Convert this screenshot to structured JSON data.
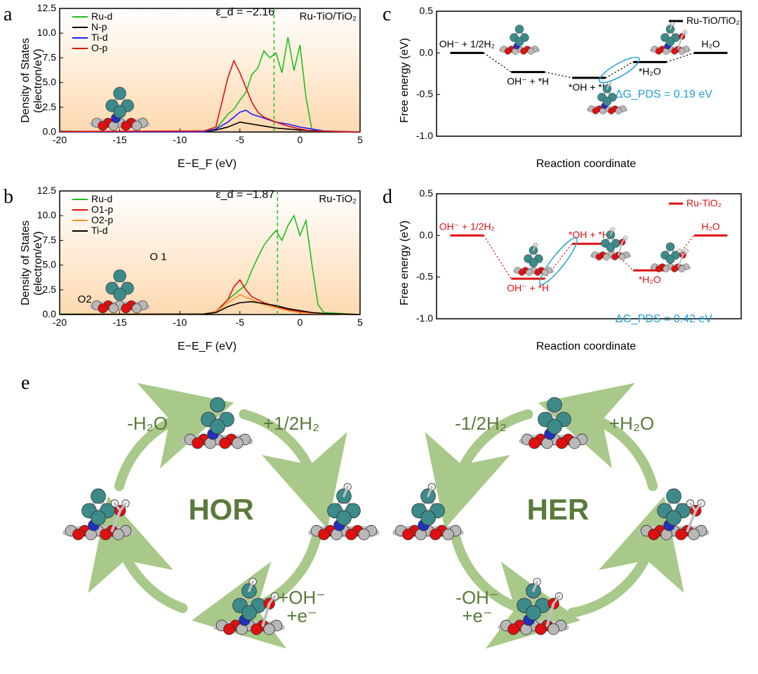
{
  "panel_a": {
    "label": "a",
    "x_title": "E−E_F (eV)",
    "y_title": "Density of States (electron/eV)",
    "xlim": [
      -20,
      5
    ],
    "ylim": [
      0,
      12.5
    ],
    "xticks": [
      -20,
      -15,
      -10,
      -5,
      0,
      5
    ],
    "yticks": [
      0.0,
      2.5,
      5.0,
      7.5,
      10.0,
      12.5
    ],
    "epsilon_d": "ε_d = −2.16",
    "system": "Ru-TiO/TiO₂",
    "legend": [
      {
        "label": "Ru-d",
        "color": "#1fbf1f"
      },
      {
        "label": "N-p",
        "color": "#000000"
      },
      {
        "label": "Ti-d",
        "color": "#1f1fff"
      },
      {
        "label": "O-p",
        "color": "#e01010"
      }
    ],
    "vline_x": -2.16,
    "vline_color": "#1fbf1f",
    "bg_gradient": [
      "#fdd9b0",
      "#ffffff"
    ],
    "series": {
      "Ru-d": {
        "color": "#1fbf1f",
        "points": [
          [
            -20,
            0.1
          ],
          [
            -18,
            0.05
          ],
          [
            -8,
            0.05
          ],
          [
            -7,
            0.3
          ],
          [
            -6,
            1.8
          ],
          [
            -5.5,
            2.3
          ],
          [
            -5,
            3.2
          ],
          [
            -4.5,
            4.0
          ],
          [
            -4,
            5.8
          ],
          [
            -3.5,
            6.5
          ],
          [
            -3,
            8.2
          ],
          [
            -2.5,
            7.5
          ],
          [
            -2,
            8.0
          ],
          [
            -1.5,
            6.0
          ],
          [
            -1,
            9.6
          ],
          [
            -0.5,
            6.2
          ],
          [
            0,
            8.8
          ],
          [
            0.5,
            3.5
          ],
          [
            1,
            0.2
          ],
          [
            2,
            0.05
          ],
          [
            5,
            0.0
          ]
        ]
      },
      "N-p": {
        "color": "#000000",
        "points": [
          [
            -20,
            0.02
          ],
          [
            -8,
            0.02
          ],
          [
            -7,
            0.2
          ],
          [
            -6,
            0.5
          ],
          [
            -5,
            1.0
          ],
          [
            -4,
            0.8
          ],
          [
            -3,
            0.6
          ],
          [
            -2,
            0.4
          ],
          [
            -1,
            0.3
          ],
          [
            0,
            0.2
          ],
          [
            2,
            0.05
          ],
          [
            5,
            0.0
          ]
        ]
      },
      "Ti-d": {
        "color": "#1f1fff",
        "points": [
          [
            -20,
            0.02
          ],
          [
            -8,
            0.02
          ],
          [
            -7,
            0.3
          ],
          [
            -6,
            1.0
          ],
          [
            -5,
            2.0
          ],
          [
            -4.5,
            2.2
          ],
          [
            -4,
            1.8
          ],
          [
            -3,
            1.4
          ],
          [
            -2,
            1.0
          ],
          [
            -1,
            0.8
          ],
          [
            0,
            0.5
          ],
          [
            1,
            0.3
          ],
          [
            2,
            0.1
          ],
          [
            5,
            0.0
          ]
        ]
      },
      "O-p": {
        "color": "#e01010",
        "points": [
          [
            -20,
            0.05
          ],
          [
            -8,
            0.1
          ],
          [
            -7,
            0.5
          ],
          [
            -6.5,
            3.0
          ],
          [
            -6,
            5.5
          ],
          [
            -5.5,
            7.2
          ],
          [
            -5,
            6.0
          ],
          [
            -4.5,
            4.5
          ],
          [
            -4,
            3.0
          ],
          [
            -3.5,
            2.0
          ],
          [
            -3,
            1.5
          ],
          [
            -2,
            1.0
          ],
          [
            -1,
            0.6
          ],
          [
            0,
            0.3
          ],
          [
            1,
            0.1
          ],
          [
            5,
            0.0
          ]
        ]
      }
    }
  },
  "panel_b": {
    "label": "b",
    "x_title": "E−E_F (eV)",
    "y_title": "Density of States (electron/eV)",
    "xlim": [
      -20,
      5
    ],
    "ylim": [
      0,
      12.5
    ],
    "xticks": [
      -20,
      -15,
      -10,
      -5,
      0,
      5
    ],
    "yticks": [
      0.0,
      2.5,
      5.0,
      7.5,
      10.0,
      12.5
    ],
    "epsilon_d": "ε_d = −1.87",
    "system": "Ru-TiO₂",
    "legend": [
      {
        "label": "Ru-d",
        "color": "#1fbf1f"
      },
      {
        "label": "O1-p",
        "color": "#e01010"
      },
      {
        "label": "O2-p",
        "color": "#ff9020"
      },
      {
        "label": "Ti-d",
        "color": "#000000"
      }
    ],
    "vline_x": -1.87,
    "vline_color": "#1fbf1f",
    "bg_gradient": [
      "#fdd9b0",
      "#ffffff"
    ],
    "inset_labels": {
      "O1": "O 1",
      "O2": "O2"
    },
    "series": {
      "Ru-d": {
        "color": "#1fbf1f",
        "points": [
          [
            -20,
            0.05
          ],
          [
            -8,
            0.05
          ],
          [
            -7,
            0.3
          ],
          [
            -6,
            1.5
          ],
          [
            -5,
            2.5
          ],
          [
            -4.5,
            3.0
          ],
          [
            -4,
            4.5
          ],
          [
            -3.5,
            5.8
          ],
          [
            -3,
            7.0
          ],
          [
            -2.5,
            7.8
          ],
          [
            -2,
            8.5
          ],
          [
            -1.5,
            7.5
          ],
          [
            -1,
            9.0
          ],
          [
            -0.5,
            10.0
          ],
          [
            0,
            8.0
          ],
          [
            0.5,
            9.5
          ],
          [
            1,
            5.0
          ],
          [
            1.5,
            1.0
          ],
          [
            2,
            0.2
          ],
          [
            5,
            0.0
          ]
        ]
      },
      "O1-p": {
        "color": "#e01010",
        "points": [
          [
            -20,
            0.02
          ],
          [
            -8,
            0.05
          ],
          [
            -7,
            0.3
          ],
          [
            -6,
            1.5
          ],
          [
            -5.5,
            2.8
          ],
          [
            -5,
            3.5
          ],
          [
            -4.5,
            2.5
          ],
          [
            -4,
            1.8
          ],
          [
            -3,
            1.2
          ],
          [
            -2,
            0.8
          ],
          [
            -1,
            0.5
          ],
          [
            0,
            0.3
          ],
          [
            1,
            0.1
          ],
          [
            5,
            0.0
          ]
        ]
      },
      "O2-p": {
        "color": "#ff9020",
        "points": [
          [
            -20,
            0.02
          ],
          [
            -8,
            0.05
          ],
          [
            -7,
            0.3
          ],
          [
            -6,
            1.2
          ],
          [
            -5,
            2.0
          ],
          [
            -4,
            1.5
          ],
          [
            -3,
            1.0
          ],
          [
            -2,
            0.7
          ],
          [
            -1,
            0.4
          ],
          [
            0,
            0.2
          ],
          [
            1,
            0.1
          ],
          [
            5,
            0.0
          ]
        ]
      },
      "Ti-d": {
        "color": "#000000",
        "points": [
          [
            -20,
            0.02
          ],
          [
            -8,
            0.05
          ],
          [
            -7,
            0.2
          ],
          [
            -6,
            0.8
          ],
          [
            -5,
            1.2
          ],
          [
            -4,
            1.3
          ],
          [
            -3,
            1.1
          ],
          [
            -2,
            0.9
          ],
          [
            -1,
            0.6
          ],
          [
            0,
            0.4
          ],
          [
            1,
            0.2
          ],
          [
            2,
            0.1
          ],
          [
            5,
            0.0
          ]
        ]
      }
    }
  },
  "panel_c": {
    "label": "c",
    "x_title": "Reaction coordinate",
    "y_title": "Free energy (eV)",
    "ylim": [
      -1.0,
      0.5
    ],
    "yticks": [
      -1.0,
      -0.5,
      0.0,
      0.5
    ],
    "system": "Ru-TiO/TiO₂",
    "line_color": "#000000",
    "deltaG": "ΔG_PDS = 0.19 eV",
    "deltaG_color": "#20a0d0",
    "pds_highlight_color": "#20a0d0",
    "pds_step_index": 2,
    "steps": [
      {
        "label": "OH⁻ + 1/2H₂",
        "G": 0.0
      },
      {
        "label": "OH⁻ + *H",
        "G": -0.23
      },
      {
        "label": "*OH + *H",
        "G": -0.3
      },
      {
        "label": "*H₂O",
        "G": -0.11
      },
      {
        "label": "H₂O",
        "G": 0.0
      }
    ]
  },
  "panel_d": {
    "label": "d",
    "x_title": "Reaction coordinate",
    "y_title": "Free energy (eV)",
    "ylim": [
      -1.0,
      0.5
    ],
    "yticks": [
      -1.0,
      -0.5,
      0.0,
      0.5
    ],
    "system": "Ru-TiO₂",
    "line_color": "#e01010",
    "deltaG": "ΔG_PDS = 0.42 eV",
    "deltaG_color": "#20a0d0",
    "pds_highlight_color": "#20a0d0",
    "pds_step_index": 1,
    "steps": [
      {
        "label": "OH⁻ + 1/2H₂",
        "G": 0.0
      },
      {
        "label": "OH⁻ + *H",
        "G": -0.52
      },
      {
        "label": "*OH + *H",
        "G": -0.1
      },
      {
        "label": "*H₂O",
        "G": -0.42
      },
      {
        "label": "H₂O",
        "G": 0.0
      }
    ]
  },
  "panel_e": {
    "label": "e",
    "cycle_color": "#5a7a3a",
    "arrow_color": "#a8c989",
    "hor_label": "HOR",
    "her_label": "HER",
    "hor_steps": [
      "-H₂O",
      "+1/2H₂",
      "+OH⁻\n+e⁻"
    ],
    "her_steps": [
      "-1/2H₂",
      "+H₂O",
      "-OH⁻\n+e⁻"
    ]
  },
  "colors": {
    "Ru": "#3d8a8a",
    "Ti": "#b8b8b8",
    "O": "#e01010",
    "N": "#2030c0",
    "H": "#f0f0f0",
    "border": "#303030"
  }
}
